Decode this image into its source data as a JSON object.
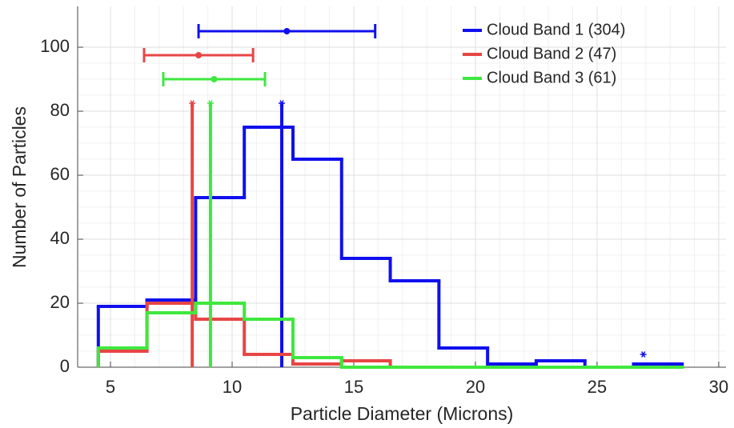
{
  "chart_data": {
    "type": "histogram",
    "x_label": "Particle Diameter (Microns)",
    "y_label": "Number of Particles",
    "bins": [
      4.5,
      6.5,
      8.5,
      10.5,
      12.5,
      14.5,
      16.5,
      18.5,
      20.5,
      22.5,
      24.5,
      26.5,
      28.5
    ],
    "series": [
      {
        "name": "Cloud Band 1 (304)",
        "color": "#1010ee",
        "values": [
          19,
          21,
          53,
          75,
          65,
          34,
          27,
          6,
          1,
          2,
          0,
          1
        ],
        "median": 12.04,
        "median_top": 82.5,
        "mean": 12.25,
        "std": 3.63,
        "errorbar_y": 105,
        "markers": [
          {
            "x": 26.9,
            "y": 4
          }
        ]
      },
      {
        "name": "Cloud Band 2 (47)",
        "color": "#e84545",
        "values": [
          5,
          20,
          15,
          4,
          1,
          2,
          0,
          0,
          0,
          0,
          0,
          0
        ],
        "median": 8.36,
        "median_top": 82.5,
        "mean": 8.62,
        "std": 2.24,
        "errorbar_y": 97.5
      },
      {
        "name": "Cloud Band 3 (61)",
        "color": "#3ee83e",
        "values": [
          6,
          17,
          20,
          15,
          3,
          0,
          0,
          0,
          0,
          0,
          0,
          0
        ],
        "median": 9.11,
        "median_top": 82.5,
        "mean": 9.26,
        "std": 2.09,
        "errorbar_y": 90
      }
    ],
    "xlim": [
      3.65,
      30.3
    ],
    "ylim": [
      0,
      112.75
    ],
    "xticks": [
      5,
      10,
      15,
      20,
      25,
      30
    ],
    "yticks": [
      0,
      20,
      40,
      60,
      80,
      100
    ],
    "grid": true,
    "legend": "top-right"
  }
}
